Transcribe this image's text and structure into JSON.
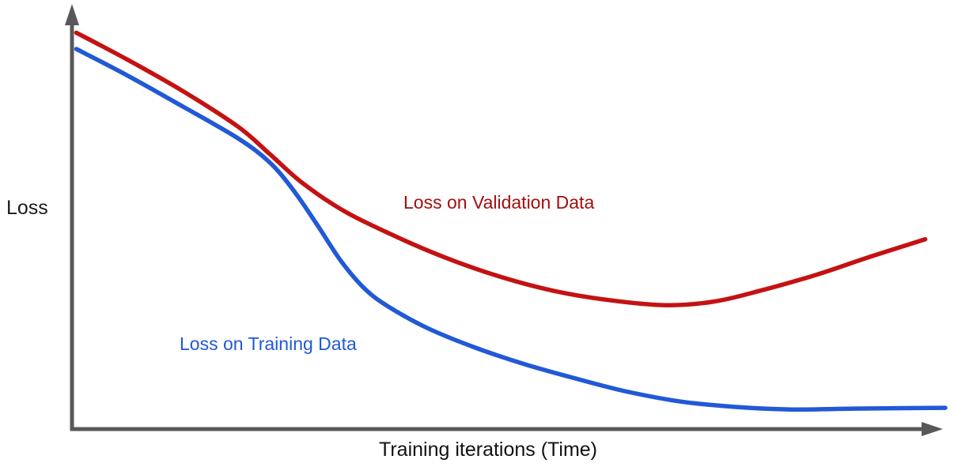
{
  "chart_data": {
    "type": "line",
    "title": "",
    "xlabel": "Training iterations (Time)",
    "ylabel": "Loss",
    "axis_color": "#58585a",
    "background_color": "#ffffff",
    "axes": {
      "x_ticks": [],
      "y_ticks": [],
      "grid": false,
      "note": "conceptual sketch, unlabeled axes with arrowheads; x and y values normalized 0-1 along axis length (y: 0 = bottom/axis, 1 = top)"
    },
    "series": [
      {
        "name": "Loss on Validation Data",
        "color": "#c41212",
        "label_color": "#a30f0f",
        "points": [
          [
            0.005,
            0.95
          ],
          [
            0.063,
            0.886
          ],
          [
            0.127,
            0.81
          ],
          [
            0.19,
            0.725
          ],
          [
            0.226,
            0.66
          ],
          [
            0.262,
            0.593
          ],
          [
            0.308,
            0.527
          ],
          [
            0.362,
            0.47
          ],
          [
            0.425,
            0.413
          ],
          [
            0.489,
            0.366
          ],
          [
            0.552,
            0.331
          ],
          [
            0.615,
            0.309
          ],
          [
            0.679,
            0.297
          ],
          [
            0.733,
            0.305
          ],
          [
            0.787,
            0.331
          ],
          [
            0.851,
            0.369
          ],
          [
            0.914,
            0.413
          ],
          [
            0.977,
            0.455
          ]
        ]
      },
      {
        "name": "Loss on Training Data",
        "color": "#2159d6",
        "label_color": "#2159d6",
        "points": [
          [
            0.005,
            0.911
          ],
          [
            0.063,
            0.848
          ],
          [
            0.127,
            0.773
          ],
          [
            0.19,
            0.697
          ],
          [
            0.226,
            0.64
          ],
          [
            0.253,
            0.574
          ],
          [
            0.281,
            0.489
          ],
          [
            0.308,
            0.403
          ],
          [
            0.335,
            0.337
          ],
          [
            0.362,
            0.294
          ],
          [
            0.407,
            0.242
          ],
          [
            0.462,
            0.195
          ],
          [
            0.516,
            0.157
          ],
          [
            0.57,
            0.125
          ],
          [
            0.633,
            0.091
          ],
          [
            0.697,
            0.066
          ],
          [
            0.76,
            0.053
          ],
          [
            0.824,
            0.047
          ],
          [
            0.896,
            0.049
          ],
          [
            1.0,
            0.051
          ]
        ]
      }
    ]
  }
}
